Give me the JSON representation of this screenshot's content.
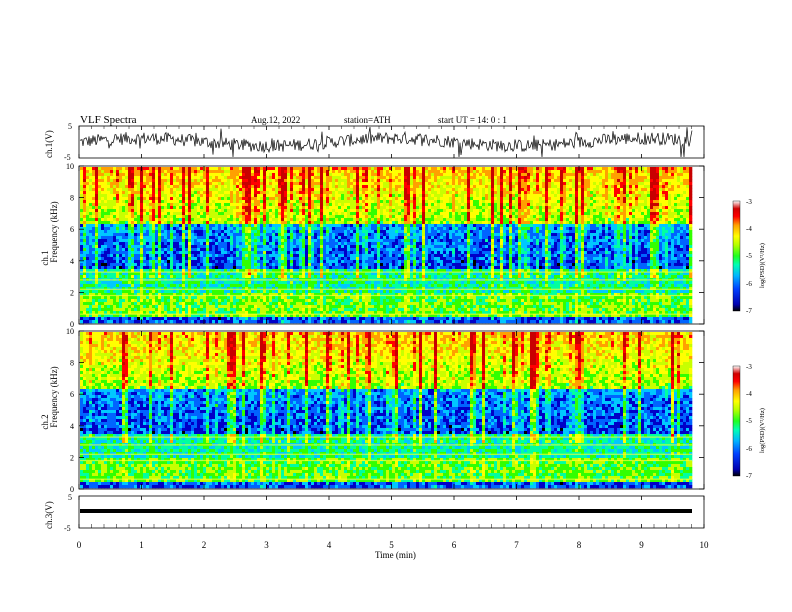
{
  "header": {
    "title": "VLF  Spectra",
    "date": "Aug.12, 2022",
    "station": "station=ATH",
    "start": "start  UT  =   14: 0  : 1"
  },
  "chart_data": [
    {
      "type": "line",
      "name": "waveform-ch1",
      "ylabel": "ch.1(V)",
      "ylim": [
        -5,
        5
      ],
      "yticks": [
        "5",
        "-5"
      ],
      "xlim": [
        0,
        10
      ],
      "color": "#000000",
      "description_level": "noisy signal around 0 V"
    },
    {
      "type": "heatmap",
      "name": "spectrogram-ch1",
      "ylabel_lines": [
        "ch.1",
        "Frequency  (kHz)"
      ],
      "ylim": [
        0,
        10
      ],
      "yticks": [
        "0",
        "2",
        "4",
        "6",
        "8",
        "10"
      ],
      "xlim": [
        0,
        9.8
      ],
      "colorbar": {
        "label": "log(PSD)(V²/Hz)",
        "range": [
          -7,
          -3
        ],
        "ticks": [
          "-3",
          "-4",
          "-5",
          "-6",
          "-7"
        ]
      }
    },
    {
      "type": "heatmap",
      "name": "spectrogram-ch2",
      "ylabel_lines": [
        "ch.2",
        "Frequency  (kHz)"
      ],
      "ylim": [
        0,
        10
      ],
      "yticks": [
        "0",
        "2",
        "4",
        "6",
        "8",
        "10"
      ],
      "xlim": [
        0,
        9.8
      ],
      "colorbar": {
        "label": "log(PSD)(V²/Hz)",
        "range": [
          -7,
          -3
        ],
        "ticks": [
          "-3",
          "-4",
          "-5",
          "-6",
          "-7"
        ]
      }
    },
    {
      "type": "line",
      "name": "waveform-ch3",
      "ylabel": "ch.3(V)",
      "ylim": [
        -5,
        5
      ],
      "yticks": [
        "5",
        "-5"
      ],
      "xlim": [
        0,
        10
      ],
      "color": "#000000",
      "description_level": "flat line near -2 V"
    }
  ],
  "xaxis": {
    "label": "Time  (min)",
    "ticks": [
      "0",
      "1",
      "2",
      "3",
      "4",
      "5",
      "6",
      "7",
      "8",
      "9",
      "10"
    ]
  },
  "colorbar_colors": [
    "#000000",
    "#0000c8",
    "#0064ff",
    "#00c8ff",
    "#00ffa0",
    "#32ff00",
    "#c8ff00",
    "#ffff00",
    "#ffa000",
    "#ff0000",
    "#c80000",
    "#ffffff"
  ]
}
